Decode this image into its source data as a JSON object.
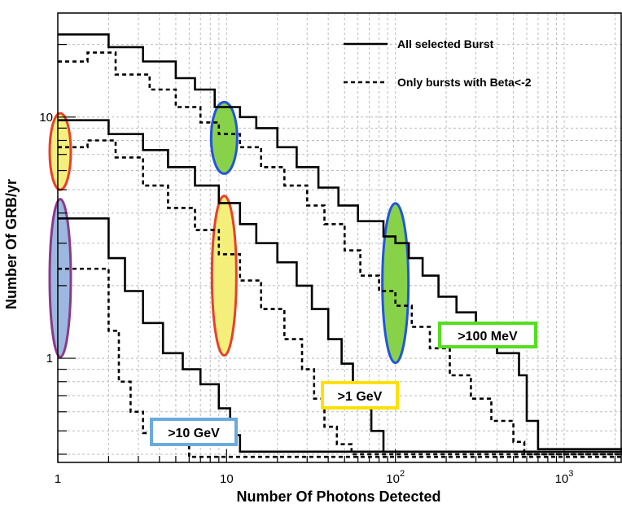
{
  "chart_data": {
    "type": "line",
    "step": true,
    "scale": {
      "x": "log",
      "y": "log"
    },
    "xlabel": "Number Of Photons Detected",
    "ylabel": "Number Of GRB/yr",
    "xlim": [
      1,
      2200
    ],
    "ylim": [
      0.37,
      27
    ],
    "x_tick_labels": [
      {
        "value": 1,
        "base": "1",
        "exp": ""
      },
      {
        "value": 10,
        "base": "10",
        "exp": ""
      },
      {
        "value": 100,
        "base": "10",
        "exp": "2"
      },
      {
        "value": 1000,
        "base": "10",
        "exp": "3"
      }
    ],
    "y_tick_labels": [
      {
        "value": 1,
        "label": "1"
      },
      {
        "value": 10,
        "label": "10"
      }
    ],
    "grid": true,
    "legend": {
      "position": "top-right",
      "entries": [
        {
          "label": "All selected Burst",
          "style": "solid"
        },
        {
          "label": "Only bursts with Beta<-2",
          "style": "dashed"
        }
      ]
    },
    "series": [
      {
        "name": "All selected Burst >100 MeV",
        "style": "solid",
        "x": [
          1,
          2,
          3.2,
          5,
          6.5,
          8.5,
          12,
          15,
          20,
          26,
          35,
          46,
          60,
          85,
          100,
          120,
          145,
          180,
          230,
          300,
          400,
          540,
          600,
          700,
          2200
        ],
        "y": [
          22,
          19.5,
          17,
          14.5,
          13,
          11,
          10,
          9,
          7.5,
          6.2,
          5.1,
          4.3,
          3.7,
          3.2,
          3.0,
          2.6,
          2.2,
          1.8,
          1.55,
          1.3,
          1.05,
          0.85,
          0.55,
          0.42,
          0.42
        ]
      },
      {
        "name": "Only bursts with Beta<-2 >100 MeV",
        "style": "dashed",
        "x": [
          1,
          1.5,
          2.2,
          3.5,
          5,
          7,
          9,
          12,
          16,
          22,
          30,
          38,
          50,
          62,
          80,
          100,
          125,
          160,
          210,
          280,
          370,
          500,
          580,
          2200
        ],
        "y": [
          17,
          18.5,
          15,
          13,
          11,
          9.5,
          8.5,
          7.5,
          6.2,
          5.2,
          4.3,
          3.6,
          2.8,
          2.2,
          1.9,
          1.65,
          1.35,
          1.1,
          0.85,
          0.68,
          0.55,
          0.45,
          0.4,
          0.4
        ]
      },
      {
        "name": "All selected Burst >1 GeV",
        "style": "solid",
        "x": [
          1,
          2,
          3.2,
          4.5,
          6.5,
          9,
          12,
          15,
          20,
          26,
          32,
          40,
          48,
          56,
          64,
          72,
          85,
          2200
        ],
        "y": [
          9.7,
          8.5,
          7.3,
          6.2,
          5.2,
          4.4,
          3.6,
          3.0,
          2.5,
          2.0,
          1.6,
          1.2,
          0.95,
          0.78,
          0.62,
          0.5,
          0.41,
          0.41
        ]
      },
      {
        "name": "Only bursts with Beta<-2 >1 GeV",
        "style": "dashed",
        "x": [
          1,
          1.5,
          2.2,
          3.2,
          4.5,
          6.5,
          9,
          12,
          16,
          22,
          28,
          33,
          38,
          45,
          55,
          2200
        ],
        "y": [
          7.5,
          8.0,
          6.8,
          5.2,
          4.2,
          3.4,
          2.7,
          2.1,
          1.6,
          1.2,
          0.9,
          0.68,
          0.52,
          0.44,
          0.4,
          0.4
        ]
      },
      {
        "name": "All selected Burst >10 GeV",
        "style": "solid",
        "x": [
          1,
          2,
          2.5,
          3.2,
          4.2,
          5.5,
          7,
          9,
          10.5,
          12,
          2200
        ],
        "y": [
          3.8,
          2.6,
          1.9,
          1.4,
          1.05,
          0.9,
          0.78,
          0.62,
          0.48,
          0.41,
          0.41
        ]
      },
      {
        "name": "Only bursts with Beta<-2 >10 GeV",
        "style": "dashed",
        "x": [
          1,
          2,
          2.3,
          2.7,
          3.2,
          4.5,
          6,
          2200
        ],
        "y": [
          2.35,
          1.3,
          0.8,
          0.6,
          0.49,
          0.44,
          0.39,
          0.39
        ]
      }
    ],
    "annotations": [
      {
        "text": ">100 MeV",
        "color": "#55dd22"
      },
      {
        "text": ">1 GeV",
        "color": "#ffe000"
      },
      {
        "text": ">10 GeV",
        "color": "#6aaadd"
      }
    ],
    "ellipses": [
      {
        "name": "yellow-ellipse-x1",
        "fill": "#f4ef7a",
        "stroke": "#e8402a"
      },
      {
        "name": "blue-ellipse-x1",
        "fill": "#9cb8e0",
        "stroke": "#8a3a8a"
      },
      {
        "name": "green-ellipse-x10",
        "fill": "#88d24a",
        "stroke": "#2255dd"
      },
      {
        "name": "yellow-ellipse-x10",
        "fill": "#f4ef7a",
        "stroke": "#e8402a"
      },
      {
        "name": "green-ellipse-x100",
        "fill": "#88d24a",
        "stroke": "#2255dd"
      }
    ]
  }
}
